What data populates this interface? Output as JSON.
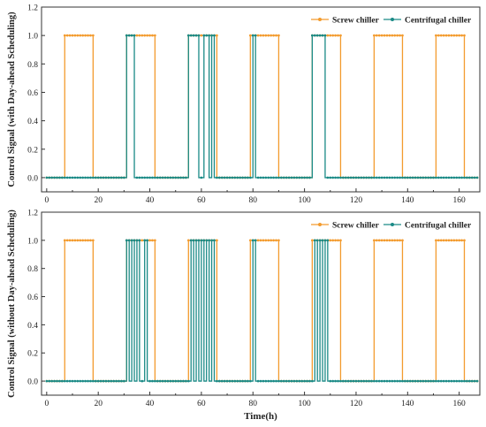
{
  "colors": {
    "screw": "#F39B2E",
    "centrifugal": "#1A8A86",
    "axis": "#333333"
  },
  "chart_data": [
    {
      "type": "line",
      "ylabel": "Control Signal (with Day-ahead Scheduling)",
      "xlabel": "",
      "xlim": [
        -2,
        168
      ],
      "ylim": [
        -0.1,
        1.2
      ],
      "xticks": [
        0,
        20,
        40,
        60,
        80,
        100,
        120,
        140,
        160
      ],
      "yticks": [
        "0.0",
        "0.2",
        "0.4",
        "0.6",
        "0.8",
        "1.0",
        "1.2"
      ],
      "legend_position": "top-right",
      "series": [
        {
          "name": "Screw chiller",
          "color": "#F39B2E",
          "on_intervals": [
            [
              7,
              18
            ],
            [
              31,
              42
            ],
            [
              55,
              66
            ],
            [
              79,
              90
            ],
            [
              103,
              114
            ],
            [
              127,
              138
            ],
            [
              151,
              162
            ]
          ]
        },
        {
          "name": "Centrifugal chiller",
          "color": "#1A8A86",
          "on_intervals": [
            [
              31,
              34
            ],
            [
              55,
              59
            ],
            [
              61,
              63
            ],
            [
              64,
              65
            ],
            [
              80,
              81
            ],
            [
              103,
              108
            ]
          ]
        }
      ]
    },
    {
      "type": "line",
      "ylabel": "Control Signal (without Day-ahead Scheduling)",
      "xlabel": "Time(h)",
      "xlim": [
        -2,
        168
      ],
      "ylim": [
        -0.1,
        1.2
      ],
      "xticks": [
        0,
        20,
        40,
        60,
        80,
        100,
        120,
        140,
        160
      ],
      "yticks": [
        "0.0",
        "0.2",
        "0.4",
        "0.6",
        "0.8",
        "1.0",
        "1.2"
      ],
      "legend_position": "top-right",
      "series": [
        {
          "name": "Screw chiller",
          "color": "#F39B2E",
          "on_intervals": [
            [
              7,
              18
            ],
            [
              31,
              42
            ],
            [
              55,
              66
            ],
            [
              79,
              90
            ],
            [
              103,
              114
            ],
            [
              127,
              138
            ],
            [
              151,
              162
            ]
          ]
        },
        {
          "name": "Centrifugal chiller",
          "color": "#1A8A86",
          "on_intervals": [
            [
              31,
              32
            ],
            [
              33,
              34
            ],
            [
              35,
              36
            ],
            [
              38,
              39
            ],
            [
              56,
              57
            ],
            [
              58,
              59
            ],
            [
              60,
              61
            ],
            [
              62,
              63
            ],
            [
              64,
              65
            ],
            [
              80,
              81
            ],
            [
              104,
              105
            ],
            [
              106,
              107
            ],
            [
              108,
              109
            ]
          ]
        }
      ]
    }
  ]
}
